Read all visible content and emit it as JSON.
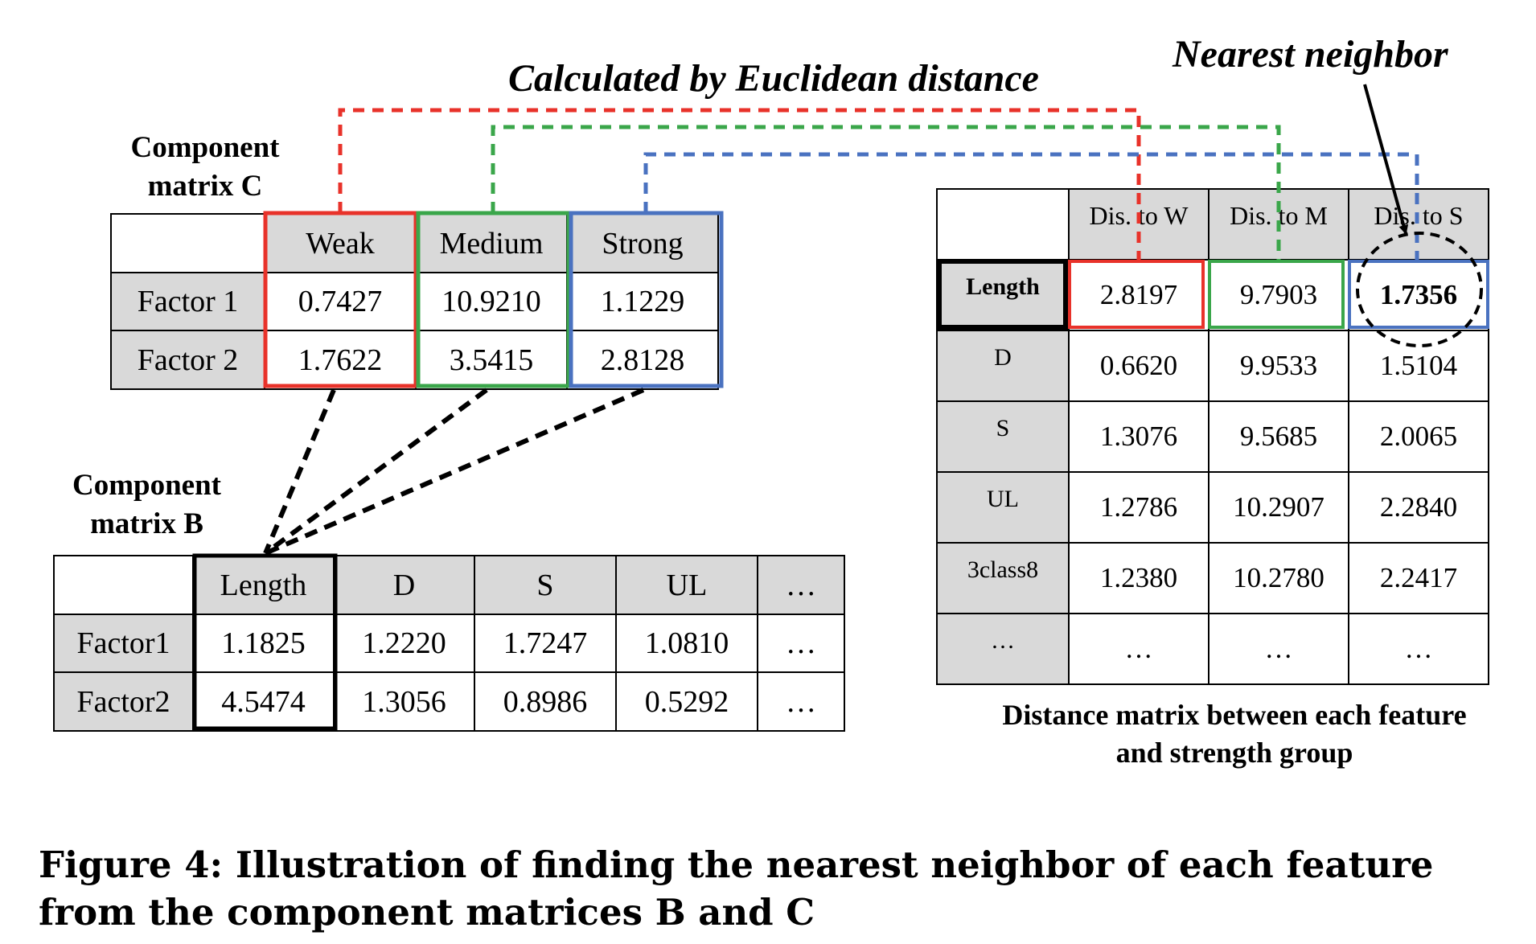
{
  "matrix_c": {
    "label": "Component matrix C",
    "headers": [
      "",
      "Weak",
      "Medium",
      "Strong"
    ],
    "rows": [
      {
        "name": "Factor 1",
        "values": [
          "0.7427",
          "10.9210",
          "1.1229"
        ]
      },
      {
        "name": "Factor 2",
        "values": [
          "1.7622",
          "3.5415",
          "2.8128"
        ]
      }
    ]
  },
  "matrix_b": {
    "label": "Component matrix B",
    "headers": [
      "",
      "Length",
      "D",
      "S",
      "UL",
      "…"
    ],
    "rows": [
      {
        "name": "Factor1",
        "values": [
          "1.1825",
          "1.2220",
          "1.7247",
          "1.0810",
          "…"
        ]
      },
      {
        "name": "Factor2",
        "values": [
          "4.5474",
          "1.3056",
          "0.8986",
          "0.5292",
          "…"
        ]
      }
    ]
  },
  "distance_matrix": {
    "label": "Distance matrix between each feature and strength group",
    "headers": [
      "",
      "Dis. to W",
      "Dis. to M",
      "Dis. to S"
    ],
    "rows": [
      {
        "name": "Length",
        "values": [
          "2.8197",
          "9.7903",
          "1.7356"
        ]
      },
      {
        "name": "D",
        "values": [
          "0.6620",
          "9.9533",
          "1.5104"
        ]
      },
      {
        "name": "S",
        "values": [
          "1.3076",
          "9.5685",
          "2.0065"
        ]
      },
      {
        "name": "UL",
        "values": [
          "1.2786",
          "10.2907",
          "2.2840"
        ]
      },
      {
        "name": "3class8",
        "values": [
          "1.2380",
          "10.2780",
          "2.2417"
        ]
      },
      {
        "name": "…",
        "values": [
          "…",
          "…",
          "…"
        ]
      }
    ]
  },
  "annotations": {
    "euclidean": "Calculated by Euclidean distance",
    "nearest_neighbor": "Nearest neighbor"
  },
  "colors": {
    "weak": "#e8322a",
    "medium": "#3aa64a",
    "strong": "#4a72c0",
    "header_fill": "#d9d9d9"
  },
  "caption": "Figure 4: Illustration of finding the nearest neighbor of each feature from the component matrices B and C"
}
